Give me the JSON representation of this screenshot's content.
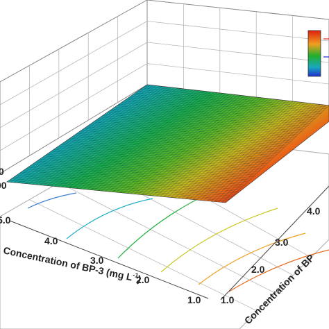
{
  "chart_data": {
    "type": "surface",
    "x_axis": {
      "label_prefix": "Concentration of BP-3 (mg L",
      "label_sup": "-1",
      "label_suffix": ")",
      "ticks": [
        "1.0",
        "2.0",
        "3.0",
        "4.0",
        "5.0"
      ]
    },
    "y_axis": {
      "label_visible": "Concentration of BP",
      "ticks": [
        "1.0",
        "2.0",
        "3.0",
        "4.0"
      ]
    },
    "z_axis": {
      "ticks": [
        "0",
        "00"
      ]
    },
    "colormap": [
      "#1f2fd0",
      "#1aa8d8",
      "#18b080",
      "#22b02a",
      "#a8c81c",
      "#f0a020",
      "#e02c10"
    ],
    "grid": true,
    "legend": "top-right"
  }
}
